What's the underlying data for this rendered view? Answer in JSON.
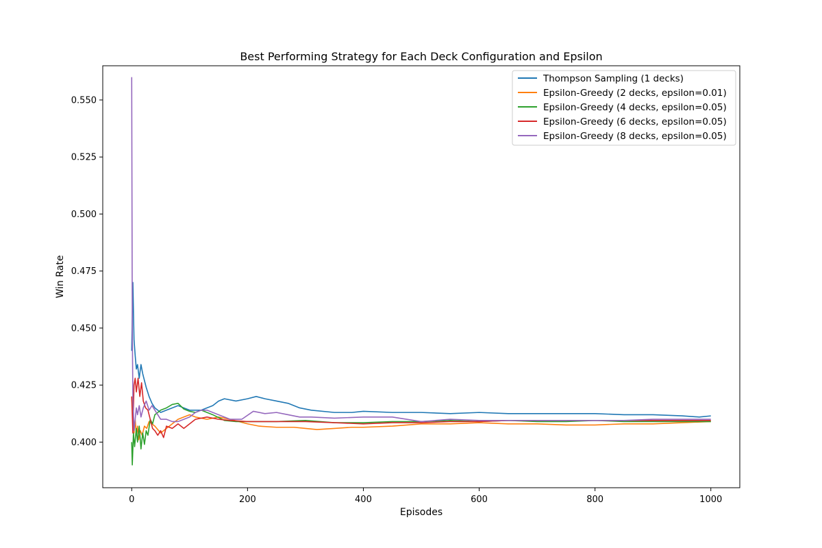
{
  "chart_data": {
    "type": "line",
    "title": "Best Performing Strategy for Each Deck Configuration and Epsilon",
    "xlabel": "Episodes",
    "ylabel": "Win Rate",
    "xlim": [
      -50,
      1050
    ],
    "ylim": [
      0.38,
      0.565
    ],
    "xticks": [
      0,
      200,
      400,
      600,
      800,
      1000
    ],
    "yticks": [
      0.4,
      0.425,
      0.45,
      0.475,
      0.5,
      0.525,
      0.55
    ],
    "ytick_labels": [
      "0.400",
      "0.425",
      "0.450",
      "0.475",
      "0.500",
      "0.525",
      "0.550"
    ],
    "grid": false,
    "legend_position": "top-right",
    "series": [
      {
        "name": "Thompson Sampling (1 decks)",
        "color": "#1f77b4",
        "points": [
          [
            0,
            0.44
          ],
          [
            2,
            0.47
          ],
          [
            4,
            0.445
          ],
          [
            6,
            0.438
          ],
          [
            8,
            0.432
          ],
          [
            10,
            0.434
          ],
          [
            13,
            0.428
          ],
          [
            16,
            0.434
          ],
          [
            19,
            0.43
          ],
          [
            22,
            0.427
          ],
          [
            25,
            0.424
          ],
          [
            30,
            0.42
          ],
          [
            35,
            0.417
          ],
          [
            40,
            0.415
          ],
          [
            50,
            0.413
          ],
          [
            60,
            0.414
          ],
          [
            70,
            0.415
          ],
          [
            80,
            0.416
          ],
          [
            90,
            0.415
          ],
          [
            100,
            0.414
          ],
          [
            120,
            0.414
          ],
          [
            140,
            0.416
          ],
          [
            150,
            0.418
          ],
          [
            160,
            0.419
          ],
          [
            180,
            0.418
          ],
          [
            200,
            0.419
          ],
          [
            215,
            0.42
          ],
          [
            230,
            0.419
          ],
          [
            250,
            0.418
          ],
          [
            270,
            0.417
          ],
          [
            290,
            0.415
          ],
          [
            310,
            0.414
          ],
          [
            350,
            0.413
          ],
          [
            380,
            0.413
          ],
          [
            400,
            0.4135
          ],
          [
            450,
            0.413
          ],
          [
            500,
            0.413
          ],
          [
            550,
            0.4125
          ],
          [
            600,
            0.413
          ],
          [
            650,
            0.4125
          ],
          [
            700,
            0.4125
          ],
          [
            750,
            0.4125
          ],
          [
            800,
            0.4125
          ],
          [
            850,
            0.412
          ],
          [
            900,
            0.412
          ],
          [
            950,
            0.4115
          ],
          [
            980,
            0.411
          ],
          [
            1000,
            0.4115
          ]
        ]
      },
      {
        "name": "Epsilon-Greedy (2 decks, epsilon=0.01)",
        "color": "#ff7f0e",
        "points": [
          [
            0,
            0.42
          ],
          [
            2,
            0.412
          ],
          [
            4,
            0.404
          ],
          [
            6,
            0.41
          ],
          [
            8,
            0.403
          ],
          [
            10,
            0.407
          ],
          [
            12,
            0.401
          ],
          [
            15,
            0.405
          ],
          [
            18,
            0.403
          ],
          [
            22,
            0.407
          ],
          [
            26,
            0.406
          ],
          [
            30,
            0.409
          ],
          [
            40,
            0.407
          ],
          [
            50,
            0.404
          ],
          [
            60,
            0.406
          ],
          [
            70,
            0.408
          ],
          [
            80,
            0.41
          ],
          [
            90,
            0.411
          ],
          [
            100,
            0.412
          ],
          [
            110,
            0.411
          ],
          [
            130,
            0.41
          ],
          [
            150,
            0.411
          ],
          [
            170,
            0.41
          ],
          [
            200,
            0.408
          ],
          [
            220,
            0.407
          ],
          [
            250,
            0.4065
          ],
          [
            280,
            0.4065
          ],
          [
            300,
            0.406
          ],
          [
            320,
            0.4055
          ],
          [
            350,
            0.406
          ],
          [
            380,
            0.4065
          ],
          [
            400,
            0.4065
          ],
          [
            450,
            0.407
          ],
          [
            500,
            0.408
          ],
          [
            550,
            0.408
          ],
          [
            600,
            0.4085
          ],
          [
            650,
            0.408
          ],
          [
            700,
            0.408
          ],
          [
            750,
            0.4075
          ],
          [
            800,
            0.4075
          ],
          [
            850,
            0.408
          ],
          [
            900,
            0.408
          ],
          [
            950,
            0.4085
          ],
          [
            1000,
            0.409
          ]
        ]
      },
      {
        "name": "Epsilon-Greedy (4 decks, epsilon=0.05)",
        "color": "#2ca02c",
        "points": [
          [
            0,
            0.4
          ],
          [
            1,
            0.39
          ],
          [
            3,
            0.404
          ],
          [
            5,
            0.398
          ],
          [
            8,
            0.406
          ],
          [
            10,
            0.4
          ],
          [
            13,
            0.407
          ],
          [
            16,
            0.397
          ],
          [
            19,
            0.404
          ],
          [
            22,
            0.399
          ],
          [
            25,
            0.405
          ],
          [
            28,
            0.403
          ],
          [
            32,
            0.41
          ],
          [
            36,
            0.408
          ],
          [
            40,
            0.412
          ],
          [
            45,
            0.413
          ],
          [
            50,
            0.414
          ],
          [
            60,
            0.415
          ],
          [
            70,
            0.4165
          ],
          [
            80,
            0.417
          ],
          [
            90,
            0.4145
          ],
          [
            100,
            0.4135
          ],
          [
            110,
            0.413
          ],
          [
            120,
            0.414
          ],
          [
            140,
            0.412
          ],
          [
            160,
            0.4095
          ],
          [
            180,
            0.409
          ],
          [
            200,
            0.409
          ],
          [
            250,
            0.409
          ],
          [
            300,
            0.4095
          ],
          [
            350,
            0.4085
          ],
          [
            400,
            0.4085
          ],
          [
            450,
            0.409
          ],
          [
            500,
            0.409
          ],
          [
            550,
            0.4095
          ],
          [
            600,
            0.409
          ],
          [
            650,
            0.4095
          ],
          [
            700,
            0.409
          ],
          [
            750,
            0.409
          ],
          [
            800,
            0.4095
          ],
          [
            850,
            0.409
          ],
          [
            900,
            0.409
          ],
          [
            950,
            0.409
          ],
          [
            1000,
            0.409
          ]
        ]
      },
      {
        "name": "Epsilon-Greedy (6 decks, epsilon=0.05)",
        "color": "#d62728",
        "points": [
          [
            0,
            0.42
          ],
          [
            2,
            0.404
          ],
          [
            4,
            0.425
          ],
          [
            6,
            0.428
          ],
          [
            8,
            0.422
          ],
          [
            11,
            0.428
          ],
          [
            14,
            0.42
          ],
          [
            17,
            0.426
          ],
          [
            20,
            0.418
          ],
          [
            24,
            0.415
          ],
          [
            28,
            0.414
          ],
          [
            32,
            0.41
          ],
          [
            36,
            0.406
          ],
          [
            40,
            0.405
          ],
          [
            45,
            0.403
          ],
          [
            50,
            0.405
          ],
          [
            55,
            0.402
          ],
          [
            60,
            0.407
          ],
          [
            70,
            0.406
          ],
          [
            80,
            0.408
          ],
          [
            90,
            0.406
          ],
          [
            100,
            0.408
          ],
          [
            110,
            0.41
          ],
          [
            130,
            0.411
          ],
          [
            150,
            0.41
          ],
          [
            170,
            0.4095
          ],
          [
            200,
            0.409
          ],
          [
            250,
            0.409
          ],
          [
            300,
            0.409
          ],
          [
            350,
            0.4085
          ],
          [
            400,
            0.408
          ],
          [
            450,
            0.4085
          ],
          [
            500,
            0.4085
          ],
          [
            550,
            0.409
          ],
          [
            600,
            0.409
          ],
          [
            650,
            0.4095
          ],
          [
            700,
            0.4095
          ],
          [
            750,
            0.4095
          ],
          [
            800,
            0.4095
          ],
          [
            850,
            0.4095
          ],
          [
            900,
            0.4095
          ],
          [
            950,
            0.4095
          ],
          [
            1000,
            0.4095
          ]
        ]
      },
      {
        "name": "Epsilon-Greedy (8 decks, epsilon=0.05)",
        "color": "#9467bd",
        "points": [
          [
            0,
            0.56
          ],
          [
            1,
            0.45
          ],
          [
            2,
            0.42
          ],
          [
            4,
            0.405
          ],
          [
            6,
            0.41
          ],
          [
            8,
            0.415
          ],
          [
            10,
            0.412
          ],
          [
            13,
            0.416
          ],
          [
            16,
            0.411
          ],
          [
            20,
            0.415
          ],
          [
            25,
            0.418
          ],
          [
            30,
            0.414
          ],
          [
            35,
            0.416
          ],
          [
            40,
            0.414
          ],
          [
            50,
            0.41
          ],
          [
            60,
            0.41
          ],
          [
            70,
            0.409
          ],
          [
            80,
            0.409
          ],
          [
            90,
            0.41
          ],
          [
            100,
            0.411
          ],
          [
            110,
            0.413
          ],
          [
            120,
            0.414
          ],
          [
            130,
            0.414
          ],
          [
            150,
            0.412
          ],
          [
            170,
            0.41
          ],
          [
            190,
            0.41
          ],
          [
            210,
            0.4135
          ],
          [
            230,
            0.4125
          ],
          [
            250,
            0.413
          ],
          [
            270,
            0.412
          ],
          [
            290,
            0.411
          ],
          [
            310,
            0.411
          ],
          [
            350,
            0.4105
          ],
          [
            400,
            0.411
          ],
          [
            450,
            0.411
          ],
          [
            500,
            0.409
          ],
          [
            550,
            0.41
          ],
          [
            600,
            0.4095
          ],
          [
            650,
            0.4095
          ],
          [
            700,
            0.4095
          ],
          [
            750,
            0.4095
          ],
          [
            800,
            0.4095
          ],
          [
            850,
            0.4095
          ],
          [
            900,
            0.41
          ],
          [
            950,
            0.41
          ],
          [
            1000,
            0.41
          ]
        ]
      }
    ]
  }
}
